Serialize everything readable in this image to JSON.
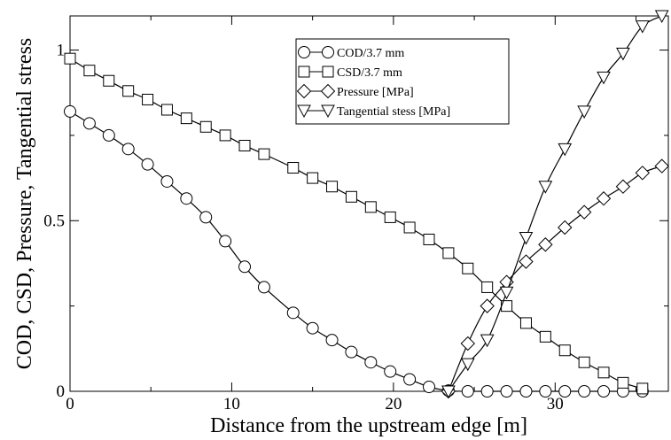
{
  "chart_data": {
    "type": "line",
    "title": "",
    "xlabel": "Distance from the upstream edge [m]",
    "ylabel": "COD, CSD, Pressure, Tangential stress",
    "xlim": [
      0,
      37
    ],
    "ylim": [
      0,
      1.1
    ],
    "x_ticks": [
      0,
      10,
      20,
      30
    ],
    "x_tick_labels": [
      "0",
      "10",
      "20",
      "30"
    ],
    "y_ticks": [
      0,
      0.5,
      1
    ],
    "y_tick_labels": [
      "0",
      "0.5",
      "1"
    ],
    "grid": false,
    "legend_position": "top-center",
    "series": [
      {
        "name": "COD/3.7 mm",
        "marker": "circle",
        "x": [
          0,
          1.2,
          2.4,
          3.6,
          4.8,
          6.0,
          7.2,
          8.4,
          9.6,
          10.8,
          12.0,
          13.8,
          15.0,
          16.2,
          17.4,
          18.6,
          19.8,
          21.0,
          22.2,
          23.4,
          24.6,
          25.8,
          27.0,
          28.2,
          29.4,
          30.6,
          31.8,
          33.0,
          34.2,
          35.4
        ],
        "values": [
          0.82,
          0.785,
          0.75,
          0.71,
          0.665,
          0.615,
          0.565,
          0.51,
          0.44,
          0.365,
          0.305,
          0.23,
          0.185,
          0.15,
          0.115,
          0.085,
          0.058,
          0.035,
          0.013,
          0.002,
          0,
          0,
          0,
          0,
          0,
          0,
          0,
          0,
          0,
          0
        ]
      },
      {
        "name": "CSD/3.7 mm",
        "marker": "square",
        "x": [
          0,
          1.2,
          2.4,
          3.6,
          4.8,
          6.0,
          7.2,
          8.4,
          9.6,
          10.8,
          12.0,
          13.8,
          15.0,
          16.2,
          17.4,
          18.6,
          19.8,
          21.0,
          22.2,
          23.4,
          24.6,
          25.8,
          27.0,
          28.2,
          29.4,
          30.6,
          31.8,
          33.0,
          34.2,
          35.4
        ],
        "values": [
          0.975,
          0.94,
          0.91,
          0.88,
          0.855,
          0.825,
          0.8,
          0.775,
          0.75,
          0.72,
          0.695,
          0.655,
          0.625,
          0.6,
          0.57,
          0.54,
          0.51,
          0.48,
          0.445,
          0.405,
          0.36,
          0.305,
          0.25,
          0.2,
          0.16,
          0.12,
          0.085,
          0.055,
          0.025,
          0.008
        ]
      },
      {
        "name": "Pressure [MPa]",
        "marker": "diamond",
        "x": [
          23.4,
          24.6,
          25.8,
          27.0,
          28.2,
          29.4,
          30.6,
          31.8,
          33.0,
          34.2,
          35.4,
          36.6
        ],
        "values": [
          0.0,
          0.14,
          0.25,
          0.32,
          0.38,
          0.43,
          0.48,
          0.525,
          0.565,
          0.6,
          0.64,
          0.66
        ]
      },
      {
        "name": "Tangential stess [MPa]",
        "marker": "triangle-down",
        "x": [
          23.4,
          24.6,
          25.8,
          27.0,
          28.2,
          29.4,
          30.6,
          31.8,
          33.0,
          34.2,
          35.4,
          36.6
        ],
        "values": [
          0.0,
          0.08,
          0.15,
          0.29,
          0.45,
          0.6,
          0.71,
          0.82,
          0.92,
          0.99,
          1.07,
          1.1
        ]
      }
    ]
  }
}
